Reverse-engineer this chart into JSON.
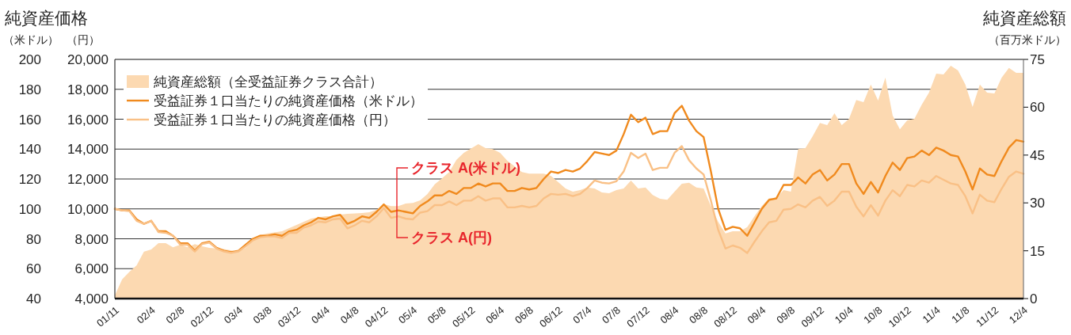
{
  "chart_data": {
    "type": "line",
    "title": "純資産価格",
    "ylabel": "（米ドル）",
    "y3label": "（円）",
    "y2label": "純資産総額（百万米ドル）",
    "x": [
      "2001-11",
      "2001-12",
      "2002-01",
      "2002-02",
      "2002-03",
      "2002-04",
      "2002-05",
      "2002-06",
      "2002-07",
      "2002-08",
      "2002-09",
      "2002-10",
      "2002-11",
      "2002-12",
      "2003-01",
      "2003-02",
      "2003-03",
      "2003-04",
      "2003-05",
      "2003-06",
      "2003-07",
      "2003-08",
      "2003-09",
      "2003-10",
      "2003-11",
      "2003-12",
      "2004-01",
      "2004-02",
      "2004-03",
      "2004-04",
      "2004-05",
      "2004-06",
      "2004-07",
      "2004-08",
      "2004-09",
      "2004-10",
      "2004-11",
      "2004-12",
      "2005-01",
      "2005-02",
      "2005-03",
      "2005-04",
      "2005-05",
      "2005-06",
      "2005-07",
      "2005-08",
      "2005-09",
      "2005-10",
      "2005-11",
      "2005-12",
      "2006-01",
      "2006-02",
      "2006-03",
      "2006-04",
      "2006-05",
      "2006-06",
      "2006-07",
      "2006-08",
      "2006-09",
      "2006-10",
      "2006-11",
      "2006-12",
      "2007-01",
      "2007-02",
      "2007-03",
      "2007-04",
      "2007-05",
      "2007-06",
      "2007-07",
      "2007-08",
      "2007-09",
      "2007-10",
      "2007-11",
      "2007-12",
      "2008-01",
      "2008-02",
      "2008-03",
      "2008-04",
      "2008-05",
      "2008-06",
      "2008-07",
      "2008-08",
      "2008-09",
      "2008-10",
      "2008-11",
      "2008-12",
      "2009-01",
      "2009-02",
      "2009-03",
      "2009-04",
      "2009-05",
      "2009-06",
      "2009-07",
      "2009-08",
      "2009-09",
      "2009-10",
      "2009-11",
      "2009-12",
      "2010-01",
      "2010-02",
      "2010-03",
      "2010-04",
      "2010-05",
      "2010-06",
      "2010-07",
      "2010-08",
      "2010-09",
      "2010-10",
      "2010-11",
      "2010-12",
      "2011-01",
      "2011-02",
      "2011-03",
      "2011-04",
      "2011-05",
      "2011-06",
      "2011-07",
      "2011-08",
      "2011-09",
      "2011-10",
      "2011-11",
      "2011-12",
      "2012-01",
      "2012-02",
      "2012-03",
      "2012-04"
    ],
    "xlim": [
      "2001-11",
      "2012-04"
    ],
    "xticks": [
      {
        "value": "2001-11",
        "label": "01/11"
      },
      {
        "value": "2002-04",
        "label": "02/4"
      },
      {
        "value": "2002-08",
        "label": "02/8"
      },
      {
        "value": "2002-12",
        "label": "02/12"
      },
      {
        "value": "2003-04",
        "label": "03/4"
      },
      {
        "value": "2003-08",
        "label": "03/8"
      },
      {
        "value": "2003-12",
        "label": "03/12"
      },
      {
        "value": "2004-04",
        "label": "04/4"
      },
      {
        "value": "2004-08",
        "label": "04/8"
      },
      {
        "value": "2004-12",
        "label": "04/12"
      },
      {
        "value": "2005-04",
        "label": "05/4"
      },
      {
        "value": "2005-08",
        "label": "05/8"
      },
      {
        "value": "2005-12",
        "label": "05/12"
      },
      {
        "value": "2006-04",
        "label": "06/4"
      },
      {
        "value": "2006-08",
        "label": "06/8"
      },
      {
        "value": "2006-12",
        "label": "06/12"
      },
      {
        "value": "2007-04",
        "label": "07/4"
      },
      {
        "value": "2007-08",
        "label": "07/8"
      },
      {
        "value": "2007-12",
        "label": "07/12"
      },
      {
        "value": "2008-04",
        "label": "08/4"
      },
      {
        "value": "2008-08",
        "label": "08/8"
      },
      {
        "value": "2008-12",
        "label": "08/12"
      },
      {
        "value": "2009-04",
        "label": "09/4"
      },
      {
        "value": "2009-08",
        "label": "09/8"
      },
      {
        "value": "2009-12",
        "label": "09/12"
      },
      {
        "value": "2010-04",
        "label": "10/4"
      },
      {
        "value": "2010-08",
        "label": "10/8"
      },
      {
        "value": "2010-12",
        "label": "10/12"
      },
      {
        "value": "2011-04",
        "label": "11/4"
      },
      {
        "value": "2011-08",
        "label": "11/8"
      },
      {
        "value": "2011-12",
        "label": "11/12"
      },
      {
        "value": "2012-04",
        "label": "12/4"
      }
    ],
    "ylim": [
      40,
      200
    ],
    "yticks": [
      40,
      60,
      80,
      100,
      120,
      140,
      160,
      180,
      200
    ],
    "y3lim": [
      4000,
      20000
    ],
    "y3ticks": [
      {
        "value": 4000,
        "label": "4,000"
      },
      {
        "value": 6000,
        "label": "6,000"
      },
      {
        "value": 8000,
        "label": "8,000"
      },
      {
        "value": 10000,
        "label": "10,000"
      },
      {
        "value": 12000,
        "label": "12,000"
      },
      {
        "value": 14000,
        "label": "14,000"
      },
      {
        "value": 16000,
        "label": "16,000"
      },
      {
        "value": 18000,
        "label": "18,000"
      },
      {
        "value": 20000,
        "label": "20,000"
      }
    ],
    "y2lim": [
      0,
      75
    ],
    "y2ticks": [
      0,
      15,
      30,
      45,
      60,
      75
    ],
    "grid": "y",
    "legend": "top left",
    "series": [
      {
        "name": "純資産総額（全受益証券クラス合計）",
        "type": "area",
        "axis": "y2",
        "color": "#fcd9b1",
        "x": [
          "2001-11",
          "2001-12",
          "2002-01",
          "2002-02",
          "2002-03",
          "2002-04",
          "2002-05",
          "2002-06",
          "2002-07",
          "2002-08",
          "2002-09",
          "2002-10",
          "2002-11",
          "2002-12",
          "2003-02",
          "2003-04",
          "2003-05",
          "2003-06",
          "2003-07",
          "2003-08",
          "2003-10",
          "2003-11",
          "2003-12",
          "2004-01",
          "2004-02",
          "2004-04",
          "2004-05",
          "2004-06",
          "2004-07",
          "2004-09",
          "2004-10",
          "2004-11",
          "2004-12",
          "2005-01",
          "2005-02",
          "2005-03",
          "2005-04",
          "2005-05",
          "2005-06",
          "2005-07",
          "2005-08",
          "2005-09",
          "2005-10",
          "2005-11",
          "2006-01",
          "2006-02",
          "2006-03",
          "2006-04",
          "2006-05",
          "2006-06",
          "2006-07",
          "2006-08",
          "2006-10",
          "2006-11",
          "2006-12",
          "2007-01",
          "2007-02",
          "2007-03",
          "2007-04",
          "2007-05",
          "2007-06",
          "2007-07",
          "2007-08",
          "2007-09",
          "2007-10",
          "2007-11",
          "2007-12",
          "2008-01",
          "2008-02",
          "2008-03",
          "2008-04",
          "2008-05",
          "2008-06",
          "2008-07",
          "2008-08",
          "2008-09",
          "2008-10",
          "2008-11",
          "2008-12",
          "2009-01",
          "2009-02",
          "2009-03",
          "2009-04",
          "2009-05",
          "2009-06",
          "2009-07",
          "2009-08",
          "2009-09",
          "2009-10",
          "2009-11",
          "2009-12",
          "2010-01",
          "2010-02",
          "2010-03",
          "2010-04",
          "2010-05",
          "2010-06",
          "2010-07",
          "2010-08",
          "2010-09",
          "2010-10",
          "2010-11",
          "2010-12",
          "2011-01",
          "2011-02",
          "2011-03",
          "2011-04",
          "2011-05",
          "2011-06",
          "2011-07",
          "2011-08",
          "2011-09",
          "2011-10",
          "2011-11",
          "2011-12",
          "2012-01",
          "2012-02",
          "2012-03",
          "2012-04"
        ],
        "values": [
          1,
          6,
          8.4,
          10.4,
          14.7,
          15.4,
          17.4,
          17.4,
          16.1,
          16.9,
          16.1,
          17.1,
          16.4,
          15.9,
          15.5,
          14.7,
          15.9,
          18.6,
          19.9,
          20.4,
          21.1,
          22.1,
          23.1,
          24.1,
          25.1,
          25.8,
          25.8,
          26.3,
          26.6,
          26.8,
          27.1,
          27.8,
          29.6,
          29,
          29,
          29.8,
          30,
          30.8,
          32.8,
          35.8,
          37.7,
          39.7,
          43.5,
          45.7,
          48.4,
          47.2,
          46.9,
          45.7,
          43.2,
          41.5,
          39.7,
          39.2,
          39.2,
          38.5,
          36.5,
          34.5,
          33.5,
          34,
          34.8,
          34.5,
          33.3,
          33,
          34,
          34.5,
          37,
          34.5,
          34.8,
          32.5,
          31.3,
          31,
          33.5,
          36,
          36.3,
          34.8,
          34.5,
          29,
          24.1,
          20.4,
          21.1,
          21.1,
          22.4,
          25.8,
          29,
          31.5,
          31.5,
          34,
          33.5,
          46.9,
          47.2,
          50.9,
          55.1,
          54.4,
          58.1,
          54.4,
          56.4,
          62.3,
          61.6,
          67.1,
          62.1,
          69.3,
          57.4,
          53.1,
          55.9,
          56.4,
          60.8,
          64.6,
          70.5,
          70.3,
          73,
          71.5,
          67.1,
          60.1,
          67.1,
          64.6,
          64.3,
          69.3,
          72.3,
          70.8,
          70.8
        ]
      },
      {
        "name": "受益証券１口当たりの純資産価格（米ドル）",
        "axis": "y",
        "color": "#f08a1e",
        "values": [
          100,
          99,
          99,
          93,
          90,
          92,
          85,
          85,
          82,
          77,
          77,
          72,
          77,
          78,
          74,
          72,
          71,
          72,
          76,
          80,
          82,
          82,
          83,
          82,
          85,
          86,
          89,
          91,
          94,
          93,
          95,
          96,
          90,
          92,
          95,
          94,
          98,
          103,
          98,
          99,
          98,
          97,
          102,
          105,
          109,
          109,
          112,
          110,
          114,
          114,
          117,
          115,
          117,
          117,
          112,
          112,
          114,
          113,
          114,
          120,
          125,
          124,
          126,
          125,
          127,
          132,
          138,
          137,
          136,
          139,
          150,
          163,
          158,
          161,
          150,
          152,
          152,
          164,
          169,
          159,
          152,
          148,
          125,
          100,
          86,
          88,
          87,
          82,
          91,
          100,
          106,
          107,
          116,
          116,
          121,
          117,
          123,
          126,
          119,
          123,
          130,
          130,
          117,
          110,
          118,
          111,
          122,
          131,
          126,
          134,
          135,
          139,
          136,
          141,
          139,
          136,
          135,
          125,
          113,
          127,
          123,
          122,
          132,
          141,
          146,
          145
        ]
      },
      {
        "name": "受益証券１口当たりの純資産価格（円）",
        "axis": "y3",
        "color": "#f9c086",
        "values": [
          10000,
          9900,
          9850,
          9200,
          9000,
          9200,
          8450,
          8400,
          8200,
          7600,
          7600,
          7150,
          7650,
          7750,
          7350,
          7150,
          7050,
          7150,
          7500,
          7900,
          8100,
          8150,
          8150,
          8050,
          8400,
          8400,
          8750,
          8900,
          9150,
          9100,
          9300,
          9350,
          8700,
          8900,
          9200,
          9100,
          9500,
          10050,
          9400,
          9500,
          9350,
          9300,
          9750,
          9850,
          10250,
          10250,
          10500,
          10250,
          10550,
          10550,
          10850,
          10550,
          10700,
          10700,
          10100,
          10100,
          10200,
          10100,
          10200,
          10700,
          11000,
          10950,
          11000,
          10850,
          11000,
          11400,
          11900,
          11750,
          11700,
          11850,
          12500,
          13750,
          13400,
          13700,
          12600,
          12750,
          12750,
          13750,
          14200,
          13250,
          12700,
          12300,
          10550,
          8600,
          7350,
          7550,
          7400,
          7050,
          7800,
          8500,
          9100,
          9200,
          9950,
          10000,
          10300,
          10100,
          10550,
          10800,
          10200,
          10550,
          11150,
          11150,
          10150,
          9500,
          10250,
          9550,
          10550,
          11250,
          10850,
          11600,
          11500,
          11900,
          11750,
          12200,
          11950,
          11700,
          11600,
          10850,
          9700,
          10950,
          10550,
          10450,
          11350,
          12150,
          12500,
          12350
        ]
      }
    ],
    "annotations": [
      "クラス A(米ドル)",
      "クラス A(円)"
    ]
  }
}
